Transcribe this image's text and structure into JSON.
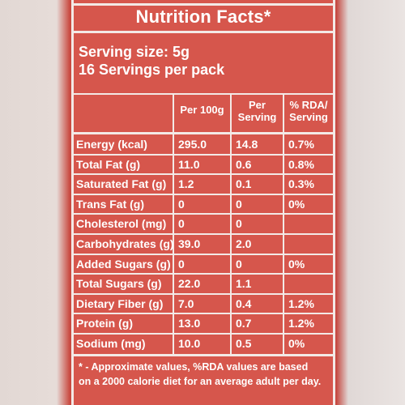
{
  "title": "Nutrition Facts*",
  "serving_size": "Serving size: 5g",
  "servings_per_pack": "16 Servings per pack",
  "columns": {
    "per100g": "Per 100g",
    "perServing_line1": "Per",
    "perServing_line2": "Serving",
    "rda_line1": "% RDA/",
    "rda_line2": "Serving"
  },
  "rows": [
    {
      "name": "Energy (kcal)",
      "per100g": "295.0",
      "perServing": "14.8",
      "rda": "0.7%"
    },
    {
      "name": "Total Fat (g)",
      "per100g": "11.0",
      "perServing": "0.6",
      "rda": "0.8%"
    },
    {
      "name": "Saturated Fat (g)",
      "per100g": "1.2",
      "perServing": "0.1",
      "rda": "0.3%"
    },
    {
      "name": "Trans Fat (g)",
      "per100g": "0",
      "perServing": "0",
      "rda": "0%"
    },
    {
      "name": "Cholesterol (mg)",
      "per100g": "0",
      "perServing": "0",
      "rda": ""
    },
    {
      "name": "Carbohydrates (g)",
      "per100g": "39.0",
      "perServing": "2.0",
      "rda": ""
    },
    {
      "name": "Added Sugars (g)",
      "per100g": "0",
      "perServing": "0",
      "rda": "0%"
    },
    {
      "name": "Total Sugars (g)",
      "per100g": "22.0",
      "perServing": "1.1",
      "rda": ""
    },
    {
      "name": "Dietary Fiber (g)",
      "per100g": "7.0",
      "perServing": "0.4",
      "rda": "1.2%"
    },
    {
      "name": "Protein (g)",
      "per100g": "13.0",
      "perServing": "0.7",
      "rda": "1.2%"
    },
    {
      "name": "Sodium (mg)",
      "per100g": "10.0",
      "perServing": "0.5",
      "rda": "0%"
    }
  ],
  "footnote_line1": "* - Approximate values, %RDA values are based",
  "footnote_line2": "on a 2000 calorie diet for an average adult per day.",
  "colors": {
    "label_red": "#d6564c",
    "ink_white": "#ffffff"
  }
}
